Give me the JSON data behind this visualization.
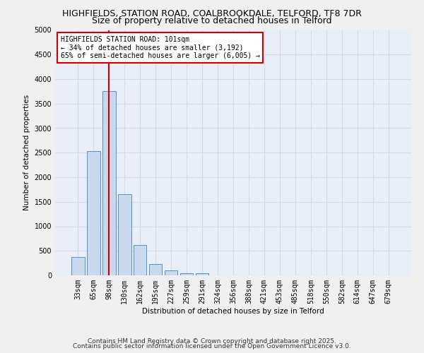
{
  "title1": "HIGHFIELDS, STATION ROAD, COALBROOKDALE, TELFORD, TF8 7DR",
  "title2": "Size of property relative to detached houses in Telford",
  "xlabel": "Distribution of detached houses by size in Telford",
  "ylabel": "Number of detached properties",
  "categories": [
    "33sqm",
    "65sqm",
    "98sqm",
    "130sqm",
    "162sqm",
    "195sqm",
    "227sqm",
    "259sqm",
    "291sqm",
    "324sqm",
    "356sqm",
    "388sqm",
    "421sqm",
    "453sqm",
    "485sqm",
    "518sqm",
    "550sqm",
    "582sqm",
    "614sqm",
    "647sqm",
    "679sqm"
  ],
  "values": [
    380,
    2530,
    3760,
    1650,
    620,
    230,
    100,
    50,
    50,
    0,
    0,
    0,
    0,
    0,
    0,
    0,
    0,
    0,
    0,
    0,
    0
  ],
  "bar_color": "#c8d9ed",
  "bar_edge_color": "#5b8fc9",
  "vline_x": 2,
  "vline_color": "#cc0000",
  "ylim": [
    0,
    5000
  ],
  "yticks": [
    0,
    500,
    1000,
    1500,
    2000,
    2500,
    3000,
    3500,
    4000,
    4500,
    5000
  ],
  "annotation_text": "HIGHFIELDS STATION ROAD: 101sqm\n← 34% of detached houses are smaller (3,192)\n65% of semi-detached houses are larger (6,005) →",
  "annotation_box_color": "#ffffff",
  "annotation_box_edge": "#cc0000",
  "footer1": "Contains HM Land Registry data © Crown copyright and database right 2025.",
  "footer2": "Contains public sector information licensed under the Open Government Licence v3.0.",
  "bg_color": "#e8eff8",
  "grid_color": "#d0dce8",
  "title_fontsize": 9,
  "subtitle_fontsize": 9,
  "axis_fontsize": 7.5,
  "tick_fontsize": 7,
  "annotation_fontsize": 7,
  "footer_fontsize": 6.5
}
